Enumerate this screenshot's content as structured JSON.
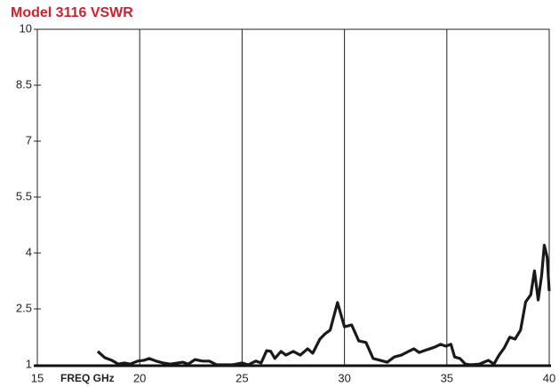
{
  "chart_data": {
    "type": "line",
    "title": "Model 3116 VSWR",
    "x_label": "FREQ GHz",
    "x": [
      17.95,
      18.3,
      18.64,
      18.95,
      19.25,
      19.55,
      19.9,
      20.2,
      20.46,
      20.8,
      21.15,
      21.5,
      21.85,
      22.1,
      22.37,
      22.7,
      23.07,
      23.4,
      23.76,
      24.1,
      24.54,
      25.0,
      25.3,
      25.67,
      25.93,
      26.2,
      26.4,
      26.6,
      26.9,
      27.14,
      27.5,
      27.84,
      28.2,
      28.45,
      28.8,
      29.05,
      29.3,
      29.66,
      30.0,
      30.35,
      30.7,
      31.05,
      31.4,
      31.74,
      32.09,
      32.43,
      32.78,
      33.13,
      33.39,
      33.65,
      33.9,
      34.17,
      34.43,
      34.69,
      34.95,
      35.2,
      35.38,
      35.64,
      35.9,
      36.16,
      36.6,
      37.03,
      37.3,
      37.55,
      37.8,
      38.07,
      38.33,
      38.6,
      38.85,
      39.1,
      39.28,
      39.46,
      39.63,
      39.76,
      39.9,
      40.0
    ],
    "series": [
      {
        "name": "VSWR",
        "color": "#1a1a1a",
        "values": [
          1.36,
          1.19,
          1.12,
          1.02,
          1.05,
          1.02,
          1.1,
          1.12,
          1.17,
          1.1,
          1.05,
          1.02,
          1.05,
          1.07,
          1.02,
          1.14,
          1.1,
          1.1,
          1.0,
          1.0,
          1.0,
          1.05,
          1.0,
          1.1,
          1.05,
          1.38,
          1.36,
          1.17,
          1.36,
          1.26,
          1.36,
          1.26,
          1.43,
          1.31,
          1.69,
          1.83,
          1.93,
          2.67,
          2.02,
          2.07,
          1.64,
          1.6,
          1.17,
          1.12,
          1.07,
          1.21,
          1.26,
          1.36,
          1.43,
          1.33,
          1.38,
          1.43,
          1.48,
          1.55,
          1.5,
          1.55,
          1.21,
          1.17,
          1.02,
          1.0,
          1.02,
          1.12,
          1.02,
          1.26,
          1.45,
          1.74,
          1.69,
          1.93,
          2.69,
          2.88,
          3.52,
          2.74,
          3.4,
          4.21,
          3.88,
          2.98
        ]
      }
    ],
    "xlim": [
      15,
      40
    ],
    "xticks": [
      15,
      20,
      25,
      30,
      35,
      40
    ],
    "ylim": [
      1,
      10
    ],
    "yticks": [
      10,
      8.5,
      7,
      5.5,
      4,
      2.5,
      1
    ],
    "grid": true,
    "title_color": "#d0202e"
  }
}
